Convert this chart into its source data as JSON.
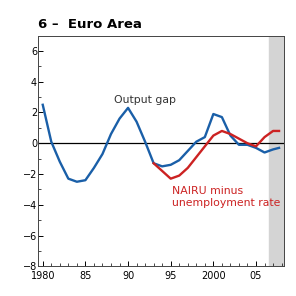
{
  "title": "6 –  Euro Area",
  "output_gap_x": [
    1980,
    1981,
    1982,
    1983,
    1984,
    1985,
    1986,
    1987,
    1988,
    1989,
    1990,
    1991,
    1992,
    1993,
    1994,
    1995,
    1996,
    1997,
    1998,
    1999,
    2000,
    2001,
    2002,
    2003,
    2004,
    2005,
    2006,
    2007,
    2007.7
  ],
  "output_gap_y": [
    2.5,
    0.1,
    -1.2,
    -2.3,
    -2.5,
    -2.4,
    -1.6,
    -0.7,
    0.6,
    1.6,
    2.3,
    1.4,
    0.1,
    -1.3,
    -1.5,
    -1.4,
    -1.1,
    -0.5,
    0.1,
    0.4,
    1.9,
    1.7,
    0.5,
    -0.1,
    -0.1,
    -0.3,
    -0.6,
    -0.4,
    -0.3
  ],
  "nairu_x": [
    1993,
    1994,
    1995,
    1996,
    1997,
    1998,
    1999,
    2000,
    2001,
    2002,
    2003,
    2004,
    2005,
    2006,
    2007,
    2007.7
  ],
  "nairu_y": [
    -1.3,
    -1.8,
    -2.3,
    -2.1,
    -1.6,
    -0.9,
    -0.2,
    0.5,
    0.8,
    0.6,
    0.3,
    0.0,
    -0.2,
    0.4,
    0.8,
    0.8
  ],
  "output_gap_color": "#1a5fa8",
  "nairu_color": "#cc2222",
  "zero_line_color": "#000000",
  "shade_start": 2006.5,
  "shade_end": 2008.5,
  "shade_color": "#d4d4d4",
  "xlim": [
    1979.5,
    2008.3
  ],
  "ylim": [
    -8,
    7
  ],
  "yticks": [
    -8,
    -6,
    -4,
    -2,
    0,
    2,
    4,
    6
  ],
  "xtick_labels": [
    "1980",
    "85",
    "90",
    "95",
    "2000",
    "05"
  ],
  "xtick_positions": [
    1980,
    1985,
    1990,
    1995,
    2000,
    2005
  ],
  "output_gap_label": "Output gap",
  "nairu_label": "NAIRU minus\nunemployment rate",
  "label_fontsize": 7.8,
  "title_fontsize": 9.5,
  "linewidth": 1.7,
  "background_color": "#ffffff"
}
